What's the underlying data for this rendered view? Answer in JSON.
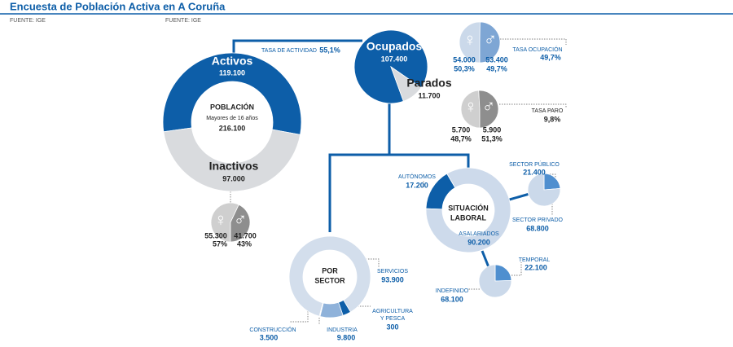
{
  "title": "Encuesta de Población Activa en A Coruña",
  "sources": [
    "FUENTE: IGE",
    "FUENTE: IGE"
  ],
  "poblacion": {
    "title": "POBLACIÓN",
    "subtitle": "Mayores de 16 años",
    "total": {
      "value": 216100,
      "label": "216.100"
    },
    "segments": [
      {
        "name": "Activos",
        "value": 119100,
        "label": "119.100",
        "color": "#0d5ea8"
      },
      {
        "name": "Inactivos",
        "value": 97000,
        "label": "97.000",
        "color": "#d9dbde"
      }
    ]
  },
  "tasa_actividad": {
    "name": "TASA DE ACTIVIDAD",
    "value": 55.1,
    "label": "55,1%"
  },
  "activos": {
    "segments": [
      {
        "name": "Ocupados",
        "value": 107400,
        "label": "107.400",
        "color": "#0d5ea8"
      },
      {
        "name": "Parados",
        "value": 11700,
        "label": "11.700",
        "color": "#d9dbde"
      }
    ]
  },
  "ocupados_sexo": {
    "rate": {
      "name": "TASA OCUPACIÓN",
      "value": 49.7,
      "label": "49,7%"
    },
    "segments": [
      {
        "name": "♀",
        "value": 54000,
        "label": "54.000",
        "pct": 50.3,
        "pct_label": "50,3%",
        "color": "#cbd9ea"
      },
      {
        "name": "♂",
        "value": 53400,
        "label": "53.400",
        "pct": 49.7,
        "pct_label": "49,7%",
        "color": "#7ea6d4"
      }
    ]
  },
  "parados_sexo": {
    "rate": {
      "name": "TASA PARO",
      "value": 9.8,
      "label": "9,8%"
    },
    "segments": [
      {
        "name": "♀",
        "value": 5700,
        "label": "5.700",
        "pct": 48.7,
        "pct_label": "48,7%",
        "color": "#cfcfcf"
      },
      {
        "name": "♂",
        "value": 5900,
        "label": "5.900",
        "pct": 51.3,
        "pct_label": "51,3%",
        "color": "#8e8e8e"
      }
    ]
  },
  "inactivos_sexo": {
    "segments": [
      {
        "name": "♀",
        "value": 55300,
        "label": "55.300",
        "pct": 57,
        "pct_label": "57%",
        "color": "#cfcfcf"
      },
      {
        "name": "♂",
        "value": 41700,
        "label": "41.700",
        "pct": 43,
        "pct_label": "43%",
        "color": "#8e8e8e"
      }
    ]
  },
  "situacion": {
    "title": [
      "SITUACIÓN",
      "LABORAL"
    ],
    "segments": [
      {
        "name": "AUTÓNOMOS",
        "value": 17200,
        "label": "17.200",
        "color": "#0d5ea8"
      },
      {
        "name": "ASALARIADOS",
        "value": 90200,
        "label": "90.200",
        "color": "#cddaeb"
      }
    ]
  },
  "asalariados_sector": {
    "segments": [
      {
        "name": "SECTOR PÚBLICO",
        "value": 21400,
        "label": "21.400",
        "color": "#4f8fcf"
      },
      {
        "name": "SECTOR PRIVADO",
        "value": 68800,
        "label": "68.800",
        "color": "#cbd9ea"
      }
    ]
  },
  "asalariados_contrato": {
    "segments": [
      {
        "name": "TEMPORAL",
        "value": 22100,
        "label": "22.100",
        "color": "#4f8fcf"
      },
      {
        "name": "INDEFINIDO",
        "value": 68100,
        "label": "68.100",
        "color": "#cbd9ea"
      }
    ]
  },
  "sector": {
    "title": [
      "POR",
      "SECTOR"
    ],
    "segments": [
      {
        "name": [
          "SERVICIOS"
        ],
        "value": 93900,
        "label": "93.900",
        "color": "#d3deec"
      },
      {
        "name": [
          "CONSTRUCCIÓN"
        ],
        "value": 3500,
        "label": "3.500",
        "color": "#0d5ea8"
      },
      {
        "name": [
          "INDUSTRIA"
        ],
        "value": 9800,
        "label": "9.800",
        "color": "#8fb2da"
      },
      {
        "name": [
          "AGRICULTURA",
          "Y PESCA"
        ],
        "value": 300,
        "label": "300",
        "color": "#5b8fc9"
      }
    ]
  }
}
